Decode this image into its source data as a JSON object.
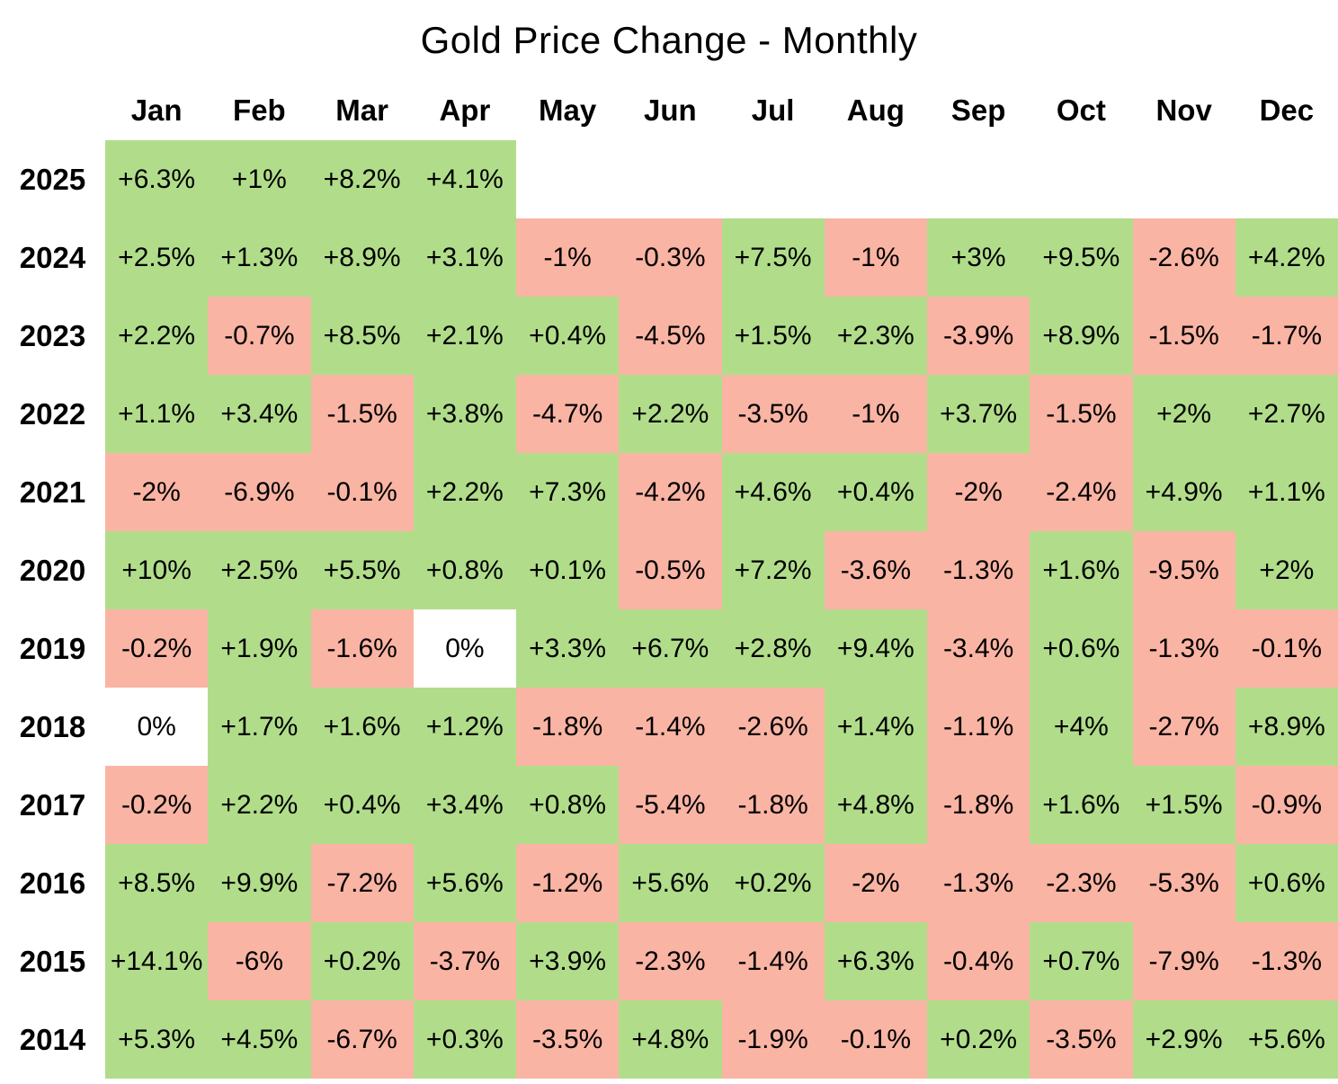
{
  "title": "Gold Price Change - Monthly",
  "colors": {
    "positive": "#b1dd8b",
    "negative": "#fab4a4",
    "zero": "#ffffff",
    "empty": "#ffffff",
    "text": "#000000"
  },
  "chart_data": {
    "type": "heatmap",
    "title": "Gold Price Change - Monthly",
    "columns": [
      "Jan",
      "Feb",
      "Mar",
      "Apr",
      "May",
      "Jun",
      "Jul",
      "Aug",
      "Sep",
      "Oct",
      "Nov",
      "Dec"
    ],
    "rows": [
      {
        "year": "2025",
        "values": [
          "+6.3%",
          "+1%",
          "+8.2%",
          "+4.1%",
          "",
          "",
          "",
          "",
          "",
          "",
          "",
          ""
        ]
      },
      {
        "year": "2024",
        "values": [
          "+2.5%",
          "+1.3%",
          "+8.9%",
          "+3.1%",
          "-1%",
          "-0.3%",
          "+7.5%",
          "-1%",
          "+3%",
          "+9.5%",
          "-2.6%",
          "+4.2%"
        ]
      },
      {
        "year": "2023",
        "values": [
          "+2.2%",
          "-0.7%",
          "+8.5%",
          "+2.1%",
          "+0.4%",
          "-4.5%",
          "+1.5%",
          "+2.3%",
          "-3.9%",
          "+8.9%",
          "-1.5%",
          "-1.7%"
        ]
      },
      {
        "year": "2022",
        "values": [
          "+1.1%",
          "+3.4%",
          "-1.5%",
          "+3.8%",
          "-4.7%",
          "+2.2%",
          "-3.5%",
          "-1%",
          "+3.7%",
          "-1.5%",
          "+2%",
          "+2.7%"
        ]
      },
      {
        "year": "2021",
        "values": [
          "-2%",
          "-6.9%",
          "-0.1%",
          "+2.2%",
          "+7.3%",
          "-4.2%",
          "+4.6%",
          "+0.4%",
          "-2%",
          "-2.4%",
          "+4.9%",
          "+1.1%"
        ]
      },
      {
        "year": "2020",
        "values": [
          "+10%",
          "+2.5%",
          "+5.5%",
          "+0.8%",
          "+0.1%",
          "-0.5%",
          "+7.2%",
          "-3.6%",
          "-1.3%",
          "+1.6%",
          "-9.5%",
          "+2%"
        ]
      },
      {
        "year": "2019",
        "values": [
          "-0.2%",
          "+1.9%",
          "-1.6%",
          "0%",
          "+3.3%",
          "+6.7%",
          "+2.8%",
          "+9.4%",
          "-3.4%",
          "+0.6%",
          "-1.3%",
          "-0.1%"
        ]
      },
      {
        "year": "2018",
        "values": [
          "0%",
          "+1.7%",
          "+1.6%",
          "+1.2%",
          "-1.8%",
          "-1.4%",
          "-2.6%",
          "+1.4%",
          "-1.1%",
          "+4%",
          "-2.7%",
          "+8.9%"
        ]
      },
      {
        "year": "2017",
        "values": [
          "-0.2%",
          "+2.2%",
          "+0.4%",
          "+3.4%",
          "+0.8%",
          "-5.4%",
          "-1.8%",
          "+4.8%",
          "-1.8%",
          "+1.6%",
          "+1.5%",
          "-0.9%"
        ]
      },
      {
        "year": "2016",
        "values": [
          "+8.5%",
          "+9.9%",
          "-7.2%",
          "+5.6%",
          "-1.2%",
          "+5.6%",
          "+0.2%",
          "-2%",
          "-1.3%",
          "-2.3%",
          "-5.3%",
          "+0.6%"
        ]
      },
      {
        "year": "2015",
        "values": [
          "+14.1%",
          "-6%",
          "+0.2%",
          "-3.7%",
          "+3.9%",
          "-2.3%",
          "-1.4%",
          "+6.3%",
          "-0.4%",
          "+0.7%",
          "-7.9%",
          "-1.3%"
        ]
      },
      {
        "year": "2014",
        "values": [
          "+5.3%",
          "+4.5%",
          "-6.7%",
          "+0.3%",
          "-3.5%",
          "+4.8%",
          "-1.9%",
          "-0.1%",
          "+0.2%",
          "-3.5%",
          "+2.9%",
          "+5.6%"
        ]
      }
    ],
    "layout": {
      "grid": "off",
      "legend": "none",
      "cell_color_rule": "positive=green, negative=red, zero-or-empty=white"
    }
  }
}
